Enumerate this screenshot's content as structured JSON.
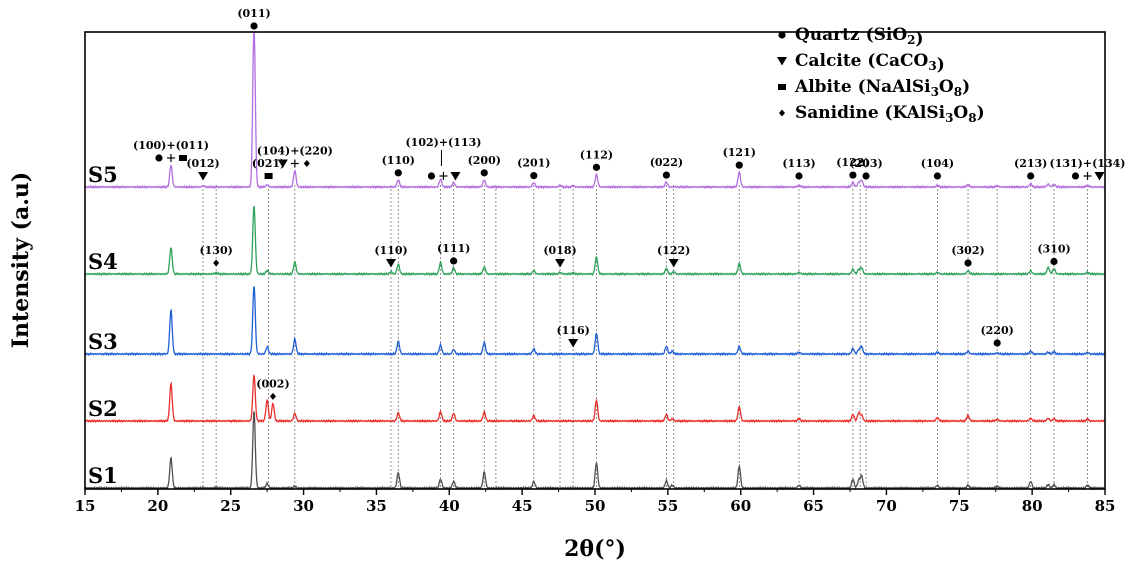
{
  "chart_data": {
    "type": "line",
    "title": "",
    "xlabel": "2θ(°)",
    "ylabel": "Intensity (a.u)",
    "xlim": [
      15,
      85
    ],
    "x_ticks": [
      15,
      20,
      25,
      30,
      35,
      40,
      45,
      50,
      55,
      60,
      65,
      70,
      75,
      80,
      85
    ],
    "y_ticks": "none",
    "grid": false,
    "legend_position": "top-right",
    "legend": [
      {
        "marker": "circle",
        "name": "Quartz",
        "formula_main": "SiO",
        "formula_sub": "2",
        "formula_rest": ""
      },
      {
        "marker": "triangle-down",
        "name": "Calcite",
        "formula_main": "CaCO",
        "formula_sub": "3",
        "formula_rest": ""
      },
      {
        "marker": "square",
        "name": "Albite",
        "formula_main": "NaAlSi",
        "formula_sub": "3",
        "formula_rest": "O",
        "formula_sub2": "8"
      },
      {
        "marker": "diamond",
        "name": "Sanidine",
        "formula_main": "KAlSi",
        "formula_sub": "3",
        "formula_rest": "O",
        "formula_sub2": "8"
      }
    ],
    "reference_lines_2theta": [
      23.1,
      24.0,
      27.6,
      29.4,
      36.0,
      36.5,
      39.4,
      40.3,
      42.4,
      43.2,
      45.8,
      47.6,
      48.5,
      50.1,
      54.9,
      55.4,
      59.9,
      64.0,
      67.7,
      68.2,
      68.6,
      73.5,
      75.6,
      77.6,
      79.9,
      81.5,
      83.8
    ],
    "series": [
      {
        "name": "S1",
        "color": "#505050",
        "offset": 0,
        "peaks": [
          [
            20.9,
            55
          ],
          [
            23.1,
            1
          ],
          [
            24.0,
            1
          ],
          [
            26.6,
            140
          ],
          [
            27.5,
            8
          ],
          [
            29.4,
            3
          ],
          [
            36.5,
            28
          ],
          [
            39.4,
            16
          ],
          [
            40.3,
            12
          ],
          [
            42.4,
            29
          ],
          [
            45.8,
            12
          ],
          [
            50.1,
            46
          ],
          [
            54.9,
            13
          ],
          [
            55.3,
            5
          ],
          [
            59.9,
            40
          ],
          [
            64.0,
            5
          ],
          [
            67.7,
            16
          ],
          [
            68.1,
            14
          ],
          [
            68.3,
            22
          ],
          [
            73.5,
            5
          ],
          [
            75.6,
            5
          ],
          [
            77.6,
            3
          ],
          [
            79.9,
            12
          ],
          [
            81.1,
            6
          ],
          [
            81.5,
            6
          ],
          [
            83.8,
            5
          ]
        ]
      },
      {
        "name": "S2",
        "color": "#e8302a",
        "offset": 1,
        "peaks": [
          [
            20.9,
            68
          ],
          [
            26.6,
            84
          ],
          [
            27.5,
            38
          ],
          [
            27.9,
            32
          ],
          [
            29.4,
            14
          ],
          [
            36.5,
            15
          ],
          [
            39.4,
            17
          ],
          [
            40.3,
            14
          ],
          [
            42.4,
            16
          ],
          [
            45.8,
            10
          ],
          [
            50.1,
            38
          ],
          [
            54.9,
            12
          ],
          [
            55.3,
            4
          ],
          [
            59.9,
            26
          ],
          [
            64.0,
            4
          ],
          [
            67.7,
            12
          ],
          [
            68.1,
            15
          ],
          [
            68.3,
            10
          ],
          [
            73.5,
            6
          ],
          [
            75.6,
            10
          ],
          [
            77.6,
            3
          ],
          [
            79.9,
            5
          ],
          [
            81.1,
            5
          ],
          [
            81.5,
            4
          ],
          [
            83.8,
            3
          ]
        ]
      },
      {
        "name": "S3",
        "color": "#1f5fd6",
        "offset": 2,
        "peaks": [
          [
            20.9,
            80
          ],
          [
            26.6,
            125
          ],
          [
            27.5,
            13
          ],
          [
            29.4,
            27
          ],
          [
            36.5,
            23
          ],
          [
            39.4,
            16
          ],
          [
            40.3,
            8
          ],
          [
            42.4,
            21
          ],
          [
            45.8,
            9
          ],
          [
            50.1,
            38
          ],
          [
            54.9,
            14
          ],
          [
            55.3,
            5
          ],
          [
            59.9,
            14
          ],
          [
            64.0,
            3
          ],
          [
            67.7,
            10
          ],
          [
            68.1,
            8
          ],
          [
            68.3,
            13
          ],
          [
            73.5,
            3
          ],
          [
            75.6,
            5
          ],
          [
            77.6,
            2
          ],
          [
            79.9,
            5
          ],
          [
            81.1,
            3
          ],
          [
            81.5,
            4
          ],
          [
            83.8,
            3
          ]
        ]
      },
      {
        "name": "S4",
        "color": "#2fa35a",
        "offset": 3,
        "peaks": [
          [
            20.9,
            48
          ],
          [
            24.0,
            2
          ],
          [
            26.6,
            125
          ],
          [
            27.5,
            6
          ],
          [
            29.4,
            22
          ],
          [
            36.0,
            4
          ],
          [
            36.5,
            18
          ],
          [
            39.4,
            21
          ],
          [
            40.3,
            11
          ],
          [
            42.4,
            13
          ],
          [
            45.8,
            6
          ],
          [
            47.6,
            3
          ],
          [
            48.5,
            2
          ],
          [
            50.1,
            31
          ],
          [
            54.9,
            10
          ],
          [
            55.4,
            4
          ],
          [
            59.9,
            19
          ],
          [
            64.0,
            3
          ],
          [
            67.7,
            9
          ],
          [
            68.1,
            8
          ],
          [
            68.3,
            11
          ],
          [
            73.5,
            3
          ],
          [
            75.6,
            6
          ],
          [
            79.9,
            6
          ],
          [
            81.1,
            12
          ],
          [
            81.5,
            10
          ],
          [
            83.8,
            3
          ]
        ]
      },
      {
        "name": "S5",
        "color": "#b36fe0",
        "offset": 4,
        "peaks": [
          [
            20.9,
            40
          ],
          [
            23.1,
            2
          ],
          [
            26.6,
            300
          ],
          [
            27.5,
            4
          ],
          [
            29.4,
            30
          ],
          [
            36.5,
            13
          ],
          [
            39.4,
            14
          ],
          [
            40.3,
            8
          ],
          [
            42.4,
            13
          ],
          [
            45.8,
            8
          ],
          [
            47.6,
            3
          ],
          [
            48.5,
            2
          ],
          [
            50.1,
            23
          ],
          [
            54.9,
            9
          ],
          [
            59.9,
            27
          ],
          [
            64.0,
            3
          ],
          [
            67.7,
            9
          ],
          [
            68.1,
            8
          ],
          [
            68.3,
            12
          ],
          [
            73.5,
            3
          ],
          [
            75.6,
            4
          ],
          [
            77.6,
            2
          ],
          [
            79.9,
            6
          ],
          [
            81.1,
            5
          ],
          [
            81.5,
            5
          ],
          [
            83.8,
            3
          ]
        ]
      }
    ],
    "annotations": [
      {
        "text": "(011)",
        "x": 26.6,
        "series": "S5",
        "markers": [
          "circle"
        ]
      },
      {
        "text": "(100)+(011)",
        "x": 20.9,
        "series": "S5",
        "markers": [
          "circle",
          "plus",
          "square"
        ]
      },
      {
        "text": "(012)",
        "x": 23.1,
        "series": "S5",
        "markers": [
          "triangle-down"
        ]
      },
      {
        "text": "(021)",
        "x": 27.6,
        "series": "S5",
        "markers": [
          "square"
        ]
      },
      {
        "text": "(104)+(220)",
        "x": 29.4,
        "series": "S5",
        "markers": [
          "triangle-down",
          "plus",
          "diamond"
        ]
      },
      {
        "text": "(110)",
        "x": 36.5,
        "series": "S5",
        "markers": [
          "circle"
        ]
      },
      {
        "text": "(102)+(113)",
        "x": 39.6,
        "series": "S5",
        "markers": [
          "circle",
          "plus",
          "triangle-down"
        ]
      },
      {
        "text": "(200)",
        "x": 42.4,
        "series": "S5",
        "markers": [
          "circle"
        ]
      },
      {
        "text": "(201)",
        "x": 45.8,
        "series": "S5",
        "markers": [
          "circle"
        ]
      },
      {
        "text": "(112)",
        "x": 50.1,
        "series": "S5",
        "markers": [
          "circle"
        ]
      },
      {
        "text": "(022)",
        "x": 54.9,
        "series": "S5",
        "markers": [
          "circle"
        ]
      },
      {
        "text": "(121)",
        "x": 59.9,
        "series": "S5",
        "markers": [
          "circle"
        ]
      },
      {
        "text": "(113)",
        "x": 64.0,
        "series": "S5",
        "markers": [
          "circle"
        ]
      },
      {
        "text": "(122)",
        "x": 67.7,
        "series": "S5",
        "markers": [
          "circle"
        ]
      },
      {
        "text": "(203)",
        "x": 68.6,
        "series": "S5",
        "markers": [
          "circle"
        ]
      },
      {
        "text": "(104)",
        "x": 73.5,
        "series": "S5",
        "markers": [
          "circle"
        ]
      },
      {
        "text": "(213)",
        "x": 79.9,
        "series": "S5",
        "markers": [
          "circle"
        ]
      },
      {
        "text": "(131)+(134)",
        "x": 83.8,
        "series": "S5",
        "markers": [
          "circle",
          "plus",
          "triangle-down"
        ]
      },
      {
        "text": "(130)",
        "x": 24.0,
        "series": "S4",
        "markers": [
          "diamond"
        ]
      },
      {
        "text": "(110)",
        "x": 36.0,
        "series": "S4",
        "markers": [
          "triangle-down"
        ]
      },
      {
        "text": "(111)",
        "x": 40.3,
        "series": "S4",
        "markers": [
          "circle"
        ]
      },
      {
        "text": "(018)",
        "x": 47.6,
        "series": "S4",
        "markers": [
          "triangle-down"
        ]
      },
      {
        "text": "(122)",
        "x": 55.4,
        "series": "S4",
        "markers": [
          "triangle-down"
        ]
      },
      {
        "text": "(302)",
        "x": 75.6,
        "series": "S4",
        "markers": [
          "circle"
        ]
      },
      {
        "text": "(310)",
        "x": 81.5,
        "series": "S4",
        "markers": [
          "circle"
        ]
      },
      {
        "text": "(116)",
        "x": 48.5,
        "series": "S3",
        "markers": [
          "triangle-down"
        ]
      },
      {
        "text": "(220)",
        "x": 77.6,
        "series": "S3",
        "markers": [
          "circle"
        ]
      },
      {
        "text": "(002)",
        "x": 27.9,
        "series": "S2",
        "markers": [
          "diamond"
        ]
      }
    ]
  }
}
